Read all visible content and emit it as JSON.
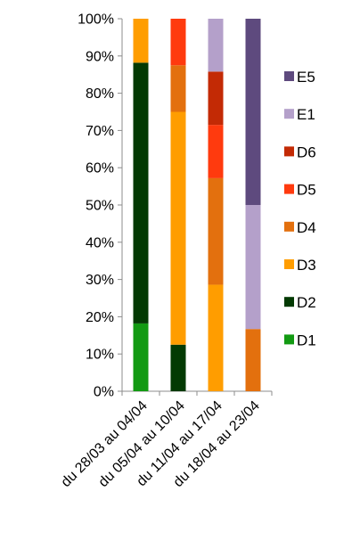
{
  "chart_data": {
    "type": "bar",
    "stacked": true,
    "percent": true,
    "categories": [
      "du 28/03 au 04/04",
      "du 05/04 au 10/04",
      "du 11/04 au 17/04",
      "du 18/04 au 23/04"
    ],
    "ylim": [
      0,
      100
    ],
    "yticks": [
      "0%",
      "10%",
      "20%",
      "30%",
      "40%",
      "50%",
      "60%",
      "70%",
      "80%",
      "90%",
      "100%"
    ],
    "legend_position": "right",
    "series": [
      {
        "name": "D1",
        "color": "#129A12",
        "values": [
          18.2,
          0,
          0,
          0
        ]
      },
      {
        "name": "D2",
        "color": "#033A03",
        "values": [
          70.0,
          12.5,
          0,
          0
        ]
      },
      {
        "name": "D3",
        "color": "#FF9D00",
        "values": [
          11.8,
          62.5,
          28.6,
          0
        ]
      },
      {
        "name": "D4",
        "color": "#E3700E",
        "values": [
          0,
          12.5,
          28.6,
          16.7
        ]
      },
      {
        "name": "D5",
        "color": "#FF3A0E",
        "values": [
          0,
          12.5,
          14.3,
          0
        ]
      },
      {
        "name": "D6",
        "color": "#C32A05",
        "values": [
          0,
          0,
          14.3,
          0
        ]
      },
      {
        "name": "E1",
        "color": "#B4A0CA",
        "values": [
          0,
          0,
          14.2,
          33.3
        ]
      },
      {
        "name": "E5",
        "color": "#5E4A7E",
        "values": [
          0,
          0,
          0,
          50.0
        ]
      }
    ]
  }
}
